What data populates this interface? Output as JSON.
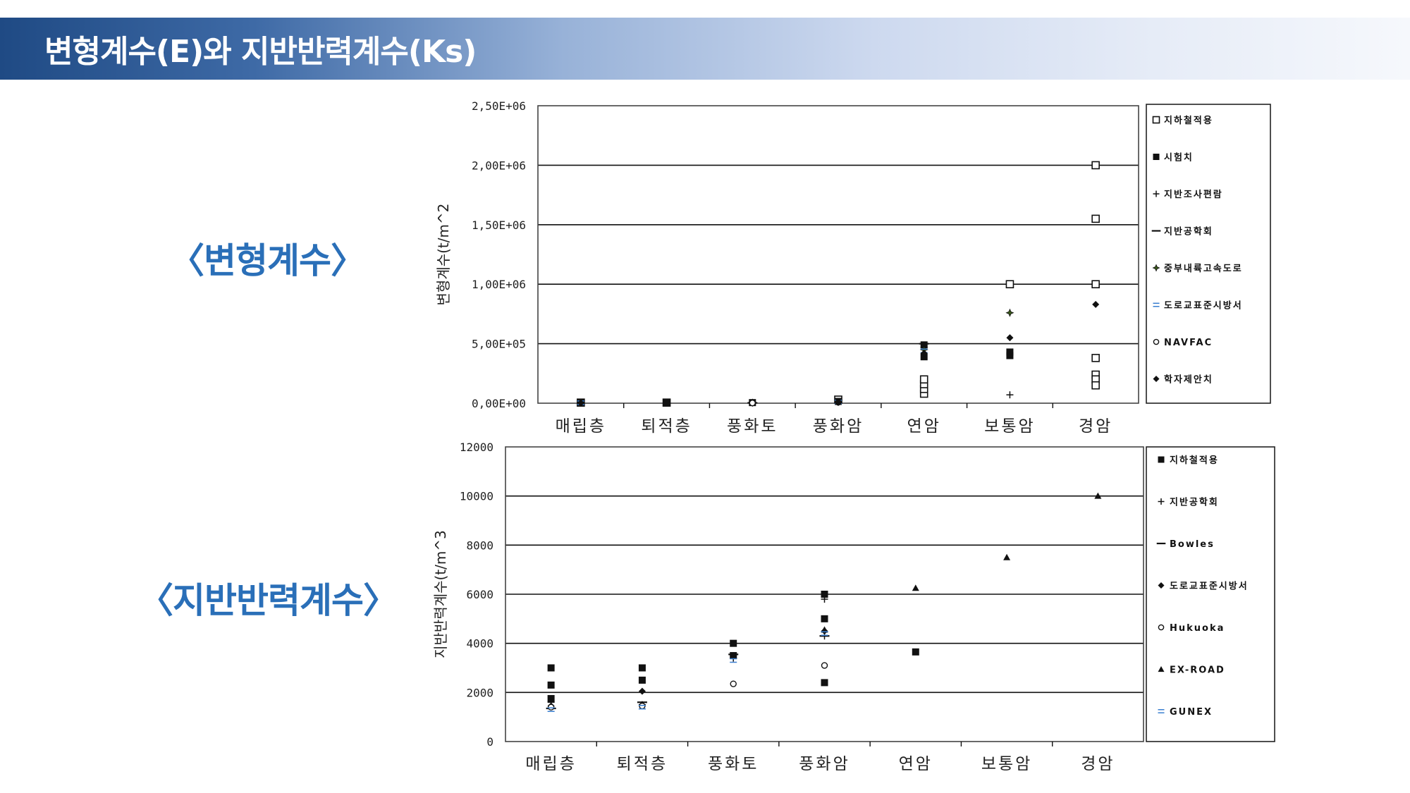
{
  "header": {
    "title": "변형계수(E)와 지반반력계수(Ks)"
  },
  "labels": {
    "chart1": "〈변형계수〉",
    "chart2": "〈지반반력계수〉"
  },
  "chart_data": [
    {
      "type": "scatter",
      "ylabel": "변형계수(t/m^2",
      "ylim": [
        0,
        2500000
      ],
      "yticks": [
        "0,00E+00",
        "5,00E+05",
        "1,00E+06",
        "1,50E+06",
        "2,00E+06",
        "2,50E+06"
      ],
      "ytick_values": [
        0,
        500000,
        1000000,
        1500000,
        2000000,
        2500000
      ],
      "categories": [
        "매립층",
        "퇴적층",
        "풍화토",
        "풍화암",
        "연암",
        "보통암",
        "경암"
      ],
      "grid": true,
      "legend_position": "right",
      "series": [
        {
          "name": "지하철적용",
          "marker": "square-open",
          "points": [
            [
              0,
              5000
            ],
            [
              1,
              5000
            ],
            [
              3,
              30000
            ],
            [
              4,
              80000
            ],
            [
              4,
              120000
            ],
            [
              4,
              160000
            ],
            [
              4,
              200000
            ],
            [
              5,
              1000000
            ],
            [
              6,
              2000000
            ],
            [
              6,
              1550000
            ],
            [
              6,
              1000000
            ],
            [
              6,
              380000
            ],
            [
              6,
              240000
            ],
            [
              6,
              200000
            ],
            [
              6,
              150000
            ]
          ]
        },
        {
          "name": "시험치",
          "marker": "square",
          "points": [
            [
              0,
              3000
            ],
            [
              1,
              3000
            ],
            [
              2,
              5000
            ],
            [
              3,
              15000
            ],
            [
              4,
              390000
            ],
            [
              4,
              490000
            ],
            [
              5,
              400000
            ],
            [
              5,
              430000
            ]
          ]
        },
        {
          "name": "지반조사편람",
          "marker": "plus",
          "points": [
            [
              5,
              70000
            ],
            [
              4,
              470000
            ]
          ]
        },
        {
          "name": "지반공학회",
          "marker": "dash",
          "points": [
            [
              2,
              3000
            ],
            [
              4,
              500000
            ]
          ]
        },
        {
          "name": "중부내륙고속도로",
          "marker": "star",
          "points": [
            [
              2,
              4000
            ],
            [
              4,
              450000
            ],
            [
              5,
              760000
            ]
          ]
        },
        {
          "name": "도로교표준시방서",
          "marker": "x",
          "points": [
            [
              0,
              4000
            ],
            [
              3,
              10000
            ],
            [
              4,
              440000
            ]
          ]
        },
        {
          "name": "NAVFAC",
          "marker": "circle",
          "points": [
            [
              2,
              2000
            ],
            [
              3,
              8000
            ]
          ]
        },
        {
          "name": "학자제안치",
          "marker": "diamond",
          "points": [
            [
              0,
              2000
            ],
            [
              3,
              6000
            ],
            [
              4,
              420000
            ],
            [
              5,
              550000
            ],
            [
              5,
              400000
            ],
            [
              6,
              830000
            ]
          ]
        }
      ]
    },
    {
      "type": "scatter",
      "ylabel": "지반반력계수(t/m^3",
      "ylim": [
        0,
        12000
      ],
      "yticks": [
        "0",
        "2000",
        "4000",
        "6000",
        "8000",
        "10000",
        "12000"
      ],
      "ytick_values": [
        0,
        2000,
        4000,
        6000,
        8000,
        10000,
        12000
      ],
      "categories": [
        "매립층",
        "퇴적층",
        "풍화토",
        "풍화암",
        "연암",
        "보통암",
        "경암"
      ],
      "grid": true,
      "legend_position": "right",
      "series": [
        {
          "name": "지하철적용",
          "marker": "square",
          "points": [
            [
              0,
              3000
            ],
            [
              0,
              2300
            ],
            [
              0,
              1750
            ],
            [
              1,
              3000
            ],
            [
              1,
              2500
            ],
            [
              2,
              4000
            ],
            [
              2,
              3500
            ],
            [
              3,
              6000
            ],
            [
              3,
              5000
            ],
            [
              3,
              2400
            ],
            [
              4,
              3650
            ]
          ]
        },
        {
          "name": "지반공학회",
          "marker": "plus",
          "points": [
            [
              0,
              1600
            ],
            [
              1,
              1500
            ],
            [
              2,
              3400
            ],
            [
              3,
              5800
            ],
            [
              3,
              4300
            ]
          ]
        },
        {
          "name": "Bowles",
          "marker": "dash",
          "points": [
            [
              0,
              1350
            ],
            [
              1,
              1600
            ],
            [
              2,
              3550
            ],
            [
              3,
              4300
            ]
          ]
        },
        {
          "name": "도로교표준시방서",
          "marker": "diamond",
          "points": [
            [
              0,
              1450
            ],
            [
              1,
              2050
            ],
            [
              2,
              3500
            ],
            [
              3,
              4500
            ]
          ]
        },
        {
          "name": "Hukuoka",
          "marker": "circle",
          "points": [
            [
              0,
              1400
            ],
            [
              1,
              1450
            ],
            [
              2,
              2350
            ],
            [
              3,
              3100
            ]
          ]
        },
        {
          "name": "EX-ROAD",
          "marker": "triangle",
          "points": [
            [
              3,
              4550
            ],
            [
              4,
              6250
            ],
            [
              5,
              7500
            ],
            [
              6,
              10000
            ]
          ]
        },
        {
          "name": "GUNEX",
          "marker": "x",
          "points": [
            [
              0,
              1300
            ],
            [
              1,
              1400
            ],
            [
              2,
              3300
            ],
            [
              3,
              4400
            ]
          ]
        }
      ]
    }
  ]
}
